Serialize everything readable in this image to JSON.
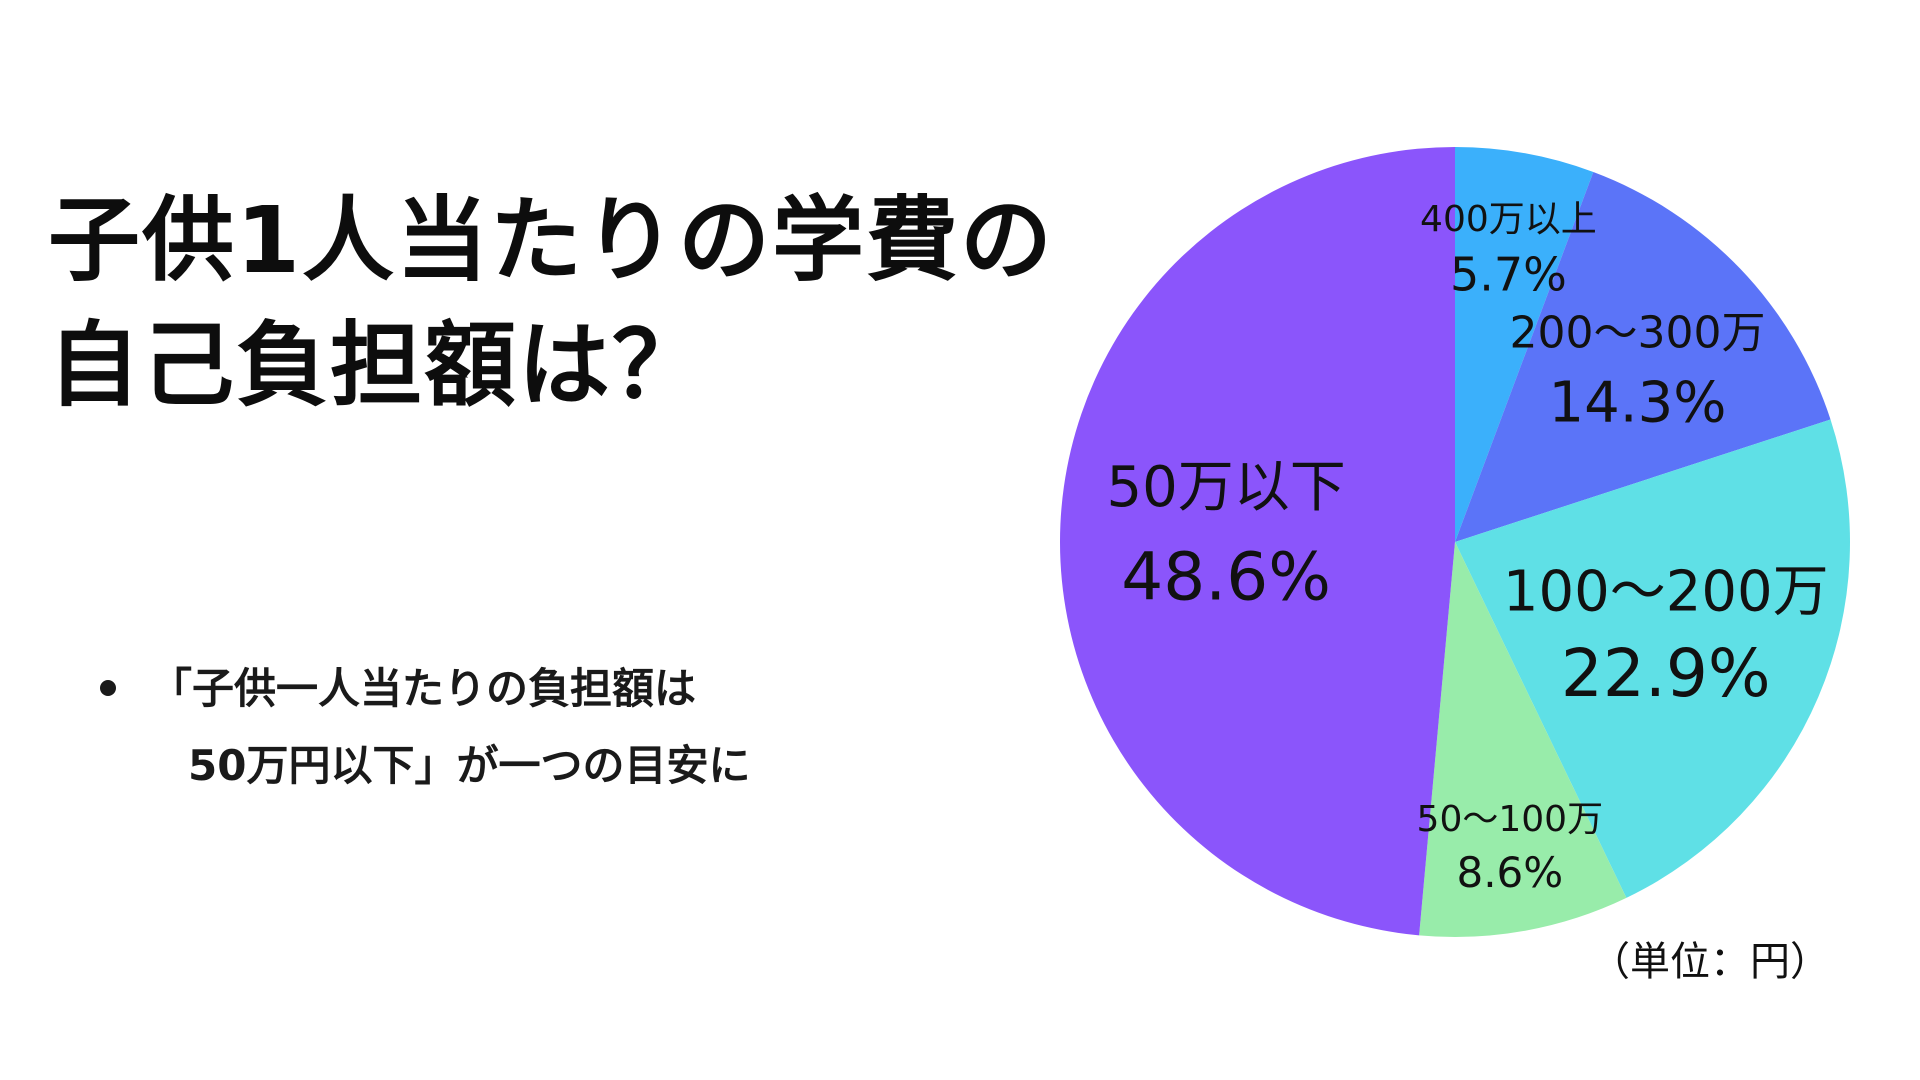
{
  "title": {
    "line1": "子供1人当たりの学費の",
    "line2": "自己負担額は？"
  },
  "bullet": {
    "line1": "「子供一人当たりの負担額は",
    "line2": "50万円以下」が一つの目安に"
  },
  "unit_note": "（単位：円）",
  "chart_data": {
    "type": "pie",
    "start_angle_deg": 0,
    "direction": "clockwise",
    "slices": [
      {
        "label": "400万以上",
        "value": 5.7,
        "value_label": "5.7%",
        "color": "#3bb0fb"
      },
      {
        "label": "200～300万",
        "value": 14.3,
        "value_label": "14.3%",
        "color": "#5b74f8"
      },
      {
        "label": "100～200万",
        "value": 22.9,
        "value_label": "22.9%",
        "color": "#5fe0e6"
      },
      {
        "label": "50～100万",
        "value": 8.6,
        "value_label": "8.6%",
        "color": "#98ecaa"
      },
      {
        "label": "50万以下",
        "value": 48.6,
        "value_label": "48.6%",
        "color": "#8b55fb"
      }
    ]
  }
}
